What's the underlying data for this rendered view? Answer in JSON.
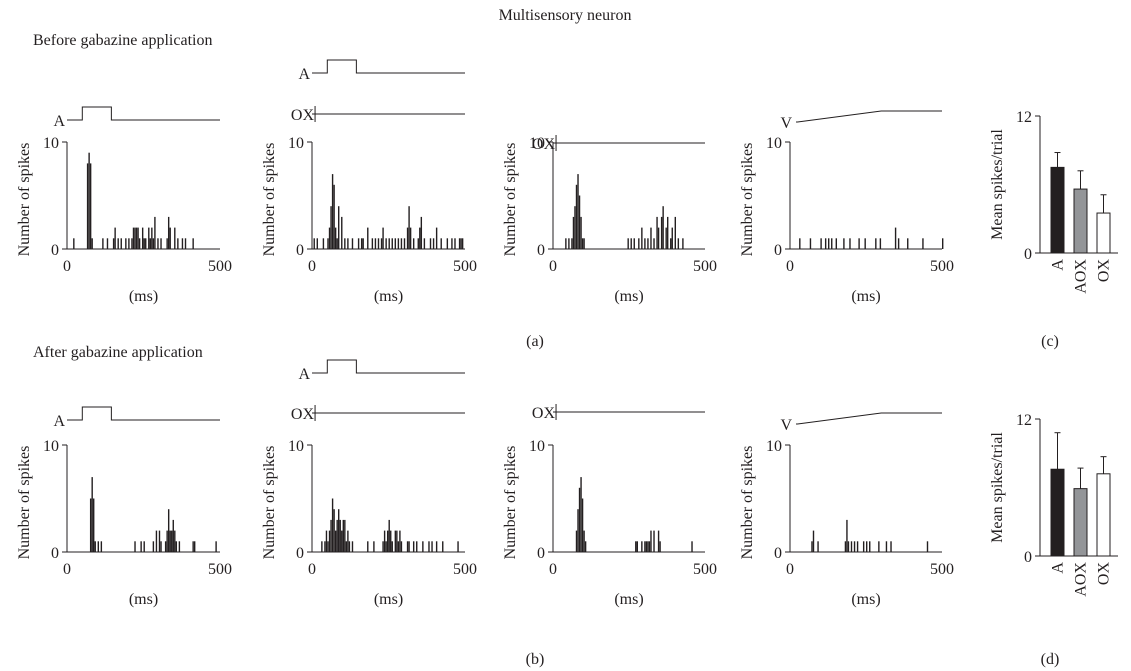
{
  "title": "Multisensory neuron",
  "section_labels": {
    "before": "Before gabazine application",
    "after": "After gabazine application"
  },
  "panel_labels": {
    "a": "(a)",
    "b": "(b)",
    "c": "(c)",
    "d": "(d)"
  },
  "colors": {
    "ink": "#231f20",
    "aox_fill": "#939598",
    "ox_fill": "#ffffff"
  },
  "chart_data": [
    {
      "id": "a1",
      "type": "bar",
      "row": "before",
      "stimuli": [
        "A"
      ],
      "xlabel": "(ms)",
      "ylabel": "Number of spikes",
      "xlim": [
        0,
        500
      ],
      "ylim": [
        0,
        10
      ],
      "xticks": [
        0,
        500
      ],
      "yticks": [
        0,
        10
      ],
      "bins": [
        [
          20,
          1
        ],
        [
          65,
          8
        ],
        [
          70,
          9
        ],
        [
          75,
          8
        ],
        [
          80,
          1
        ],
        [
          115,
          1
        ],
        [
          130,
          1
        ],
        [
          150,
          1
        ],
        [
          155,
          2
        ],
        [
          165,
          1
        ],
        [
          175,
          1
        ],
        [
          190,
          1
        ],
        [
          200,
          1
        ],
        [
          210,
          1
        ],
        [
          215,
          2
        ],
        [
          220,
          2
        ],
        [
          225,
          2
        ],
        [
          230,
          2
        ],
        [
          235,
          1
        ],
        [
          245,
          2
        ],
        [
          250,
          1
        ],
        [
          255,
          1
        ],
        [
          265,
          2
        ],
        [
          270,
          1
        ],
        [
          275,
          2
        ],
        [
          280,
          1
        ],
        [
          285,
          3
        ],
        [
          295,
          1
        ],
        [
          305,
          1
        ],
        [
          325,
          1
        ],
        [
          330,
          3
        ],
        [
          335,
          2
        ],
        [
          350,
          2
        ],
        [
          360,
          1
        ],
        [
          375,
          1
        ],
        [
          385,
          1
        ],
        [
          410,
          1
        ]
      ]
    },
    {
      "id": "a2",
      "type": "bar",
      "row": "before",
      "stimuli": [
        "A",
        "OX"
      ],
      "xlabel": "(ms)",
      "ylabel": "Number of spikes",
      "xlim": [
        0,
        500
      ],
      "ylim": [
        0,
        10
      ],
      "xticks": [
        0,
        500
      ],
      "yticks": [
        0,
        10
      ],
      "bins": [
        [
          5,
          1
        ],
        [
          15,
          1
        ],
        [
          35,
          1
        ],
        [
          50,
          1
        ],
        [
          55,
          2
        ],
        [
          60,
          4
        ],
        [
          65,
          7
        ],
        [
          70,
          6
        ],
        [
          75,
          2
        ],
        [
          80,
          1
        ],
        [
          85,
          4
        ],
        [
          95,
          3
        ],
        [
          105,
          1
        ],
        [
          115,
          1
        ],
        [
          130,
          1
        ],
        [
          150,
          1
        ],
        [
          160,
          1
        ],
        [
          165,
          1
        ],
        [
          180,
          2
        ],
        [
          195,
          1
        ],
        [
          205,
          1
        ],
        [
          215,
          1
        ],
        [
          225,
          1
        ],
        [
          230,
          2
        ],
        [
          240,
          1
        ],
        [
          250,
          1
        ],
        [
          260,
          1
        ],
        [
          270,
          1
        ],
        [
          280,
          1
        ],
        [
          290,
          1
        ],
        [
          300,
          1
        ],
        [
          310,
          2
        ],
        [
          315,
          4
        ],
        [
          320,
          2
        ],
        [
          330,
          1
        ],
        [
          345,
          1
        ],
        [
          350,
          2
        ],
        [
          355,
          3
        ],
        [
          365,
          1
        ],
        [
          385,
          1
        ],
        [
          395,
          1
        ],
        [
          405,
          2
        ],
        [
          420,
          1
        ],
        [
          440,
          1
        ],
        [
          455,
          1
        ],
        [
          465,
          1
        ],
        [
          480,
          1
        ],
        [
          485,
          1
        ],
        [
          490,
          1
        ]
      ]
    },
    {
      "id": "a3",
      "type": "bar",
      "row": "before",
      "stimuli": [
        "OX"
      ],
      "xlabel": "(ms)",
      "ylabel": "Number of spikes",
      "xlim": [
        0,
        500
      ],
      "ylim": [
        0,
        10
      ],
      "xticks": [
        0,
        500
      ],
      "yticks": [
        0,
        10
      ],
      "bins": [
        [
          40,
          1
        ],
        [
          50,
          1
        ],
        [
          60,
          1
        ],
        [
          65,
          3
        ],
        [
          70,
          4
        ],
        [
          75,
          6
        ],
        [
          80,
          7
        ],
        [
          85,
          5
        ],
        [
          90,
          3
        ],
        [
          95,
          1
        ],
        [
          100,
          1
        ],
        [
          245,
          1
        ],
        [
          255,
          1
        ],
        [
          265,
          1
        ],
        [
          280,
          1
        ],
        [
          290,
          2
        ],
        [
          300,
          1
        ],
        [
          310,
          1
        ],
        [
          320,
          2
        ],
        [
          330,
          1
        ],
        [
          340,
          3
        ],
        [
          345,
          2
        ],
        [
          355,
          3
        ],
        [
          360,
          4
        ],
        [
          370,
          2
        ],
        [
          375,
          3
        ],
        [
          385,
          1
        ],
        [
          390,
          2
        ],
        [
          400,
          3
        ],
        [
          410,
          1
        ],
        [
          425,
          1
        ]
      ]
    },
    {
      "id": "a4",
      "type": "bar",
      "row": "before",
      "stimuli": [
        "V"
      ],
      "xlabel": "(ms)",
      "ylabel": "Number of spikes",
      "xlim": [
        0,
        500
      ],
      "ylim": [
        0,
        10
      ],
      "xticks": [
        0,
        500
      ],
      "yticks": [
        0,
        10
      ],
      "bins": [
        [
          30,
          1
        ],
        [
          65,
          1
        ],
        [
          100,
          1
        ],
        [
          115,
          1
        ],
        [
          125,
          1
        ],
        [
          135,
          1
        ],
        [
          150,
          1
        ],
        [
          175,
          1
        ],
        [
          195,
          1
        ],
        [
          225,
          1
        ],
        [
          245,
          1
        ],
        [
          280,
          1
        ],
        [
          295,
          1
        ],
        [
          345,
          2
        ],
        [
          355,
          1
        ],
        [
          385,
          1
        ],
        [
          435,
          1
        ],
        [
          500,
          1
        ]
      ]
    },
    {
      "id": "b1",
      "type": "bar",
      "row": "after",
      "stimuli": [
        "A"
      ],
      "xlabel": "(ms)",
      "ylabel": "Number of spikes",
      "xlim": [
        0,
        500
      ],
      "ylim": [
        0,
        10
      ],
      "xticks": [
        0,
        500
      ],
      "yticks": [
        0,
        10
      ],
      "bins": [
        [
          75,
          5
        ],
        [
          80,
          7
        ],
        [
          85,
          5
        ],
        [
          90,
          1
        ],
        [
          100,
          1
        ],
        [
          110,
          1
        ],
        [
          220,
          1
        ],
        [
          240,
          1
        ],
        [
          250,
          1
        ],
        [
          280,
          1
        ],
        [
          290,
          2
        ],
        [
          300,
          2
        ],
        [
          305,
          1
        ],
        [
          320,
          1
        ],
        [
          325,
          2
        ],
        [
          330,
          4
        ],
        [
          335,
          2
        ],
        [
          340,
          2
        ],
        [
          345,
          3
        ],
        [
          350,
          2
        ],
        [
          355,
          1
        ],
        [
          365,
          1
        ],
        [
          410,
          1
        ],
        [
          415,
          1
        ],
        [
          485,
          1
        ]
      ]
    },
    {
      "id": "b2",
      "type": "bar",
      "row": "after",
      "stimuli": [
        "A",
        "OX"
      ],
      "xlabel": "(ms)",
      "ylabel": "Number of spikes",
      "xlim": [
        0,
        500
      ],
      "ylim": [
        0,
        10
      ],
      "xticks": [
        0,
        500
      ],
      "yticks": [
        0,
        10
      ],
      "bins": [
        [
          30,
          1
        ],
        [
          40,
          1
        ],
        [
          45,
          2
        ],
        [
          50,
          1
        ],
        [
          55,
          2
        ],
        [
          60,
          3
        ],
        [
          65,
          5
        ],
        [
          70,
          4
        ],
        [
          75,
          2
        ],
        [
          80,
          3
        ],
        [
          85,
          4
        ],
        [
          90,
          3
        ],
        [
          95,
          2
        ],
        [
          100,
          3
        ],
        [
          105,
          3
        ],
        [
          110,
          1
        ],
        [
          115,
          2
        ],
        [
          120,
          1
        ],
        [
          130,
          1
        ],
        [
          180,
          1
        ],
        [
          200,
          1
        ],
        [
          230,
          1
        ],
        [
          235,
          2
        ],
        [
          240,
          1
        ],
        [
          245,
          2
        ],
        [
          250,
          3
        ],
        [
          255,
          2
        ],
        [
          260,
          1
        ],
        [
          270,
          2
        ],
        [
          275,
          2
        ],
        [
          280,
          1
        ],
        [
          285,
          2
        ],
        [
          290,
          1
        ],
        [
          310,
          1
        ],
        [
          315,
          1
        ],
        [
          330,
          1
        ],
        [
          340,
          1
        ],
        [
          360,
          1
        ],
        [
          380,
          1
        ],
        [
          390,
          1
        ],
        [
          405,
          1
        ],
        [
          425,
          1
        ],
        [
          475,
          1
        ]
      ]
    },
    {
      "id": "b3",
      "type": "bar",
      "row": "after",
      "stimuli": [
        "OX"
      ],
      "xlabel": "(ms)",
      "ylabel": "Number of spikes",
      "xlim": [
        0,
        500
      ],
      "ylim": [
        0,
        10
      ],
      "xticks": [
        0,
        500
      ],
      "yticks": [
        0,
        10
      ],
      "bins": [
        [
          75,
          2
        ],
        [
          80,
          4
        ],
        [
          85,
          6
        ],
        [
          90,
          7
        ],
        [
          95,
          5
        ],
        [
          100,
          2
        ],
        [
          105,
          1
        ],
        [
          270,
          1
        ],
        [
          275,
          1
        ],
        [
          290,
          1
        ],
        [
          300,
          1
        ],
        [
          305,
          1
        ],
        [
          310,
          1
        ],
        [
          315,
          1
        ],
        [
          320,
          2
        ],
        [
          330,
          2
        ],
        [
          345,
          2
        ],
        [
          350,
          1
        ],
        [
          455,
          1
        ]
      ]
    },
    {
      "id": "b4",
      "type": "bar",
      "row": "after",
      "stimuli": [
        "V"
      ],
      "xlabel": "(ms)",
      "ylabel": "Number of spikes",
      "xlim": [
        0,
        500
      ],
      "ylim": [
        0,
        10
      ],
      "xticks": [
        0,
        500
      ],
      "yticks": [
        0,
        10
      ],
      "bins": [
        [
          70,
          1
        ],
        [
          75,
          2
        ],
        [
          90,
          1
        ],
        [
          180,
          1
        ],
        [
          185,
          3
        ],
        [
          190,
          1
        ],
        [
          200,
          1
        ],
        [
          210,
          1
        ],
        [
          220,
          1
        ],
        [
          240,
          1
        ],
        [
          250,
          1
        ],
        [
          260,
          1
        ],
        [
          290,
          1
        ],
        [
          315,
          1
        ],
        [
          330,
          1
        ],
        [
          450,
          1
        ]
      ]
    },
    {
      "id": "c",
      "type": "bar",
      "row": "before",
      "ylabel": "Mean spikes/trial",
      "ylim": [
        0,
        12
      ],
      "yticks": [
        0,
        12
      ],
      "categories": [
        "A",
        "AOX",
        "OX"
      ],
      "values": [
        7.5,
        5.6,
        3.5
      ],
      "errors": [
        1.3,
        1.6,
        1.6
      ],
      "fills": [
        "#231f20",
        "#939598",
        "#ffffff"
      ]
    },
    {
      "id": "d",
      "type": "bar",
      "row": "after",
      "ylabel": "Mean spikes/trial",
      "ylim": [
        0,
        12
      ],
      "yticks": [
        0,
        12
      ],
      "categories": [
        "A",
        "AOX",
        "OX"
      ],
      "values": [
        7.6,
        5.9,
        7.2
      ],
      "errors": [
        3.2,
        1.8,
        1.5
      ],
      "fills": [
        "#231f20",
        "#939598",
        "#ffffff"
      ]
    }
  ]
}
